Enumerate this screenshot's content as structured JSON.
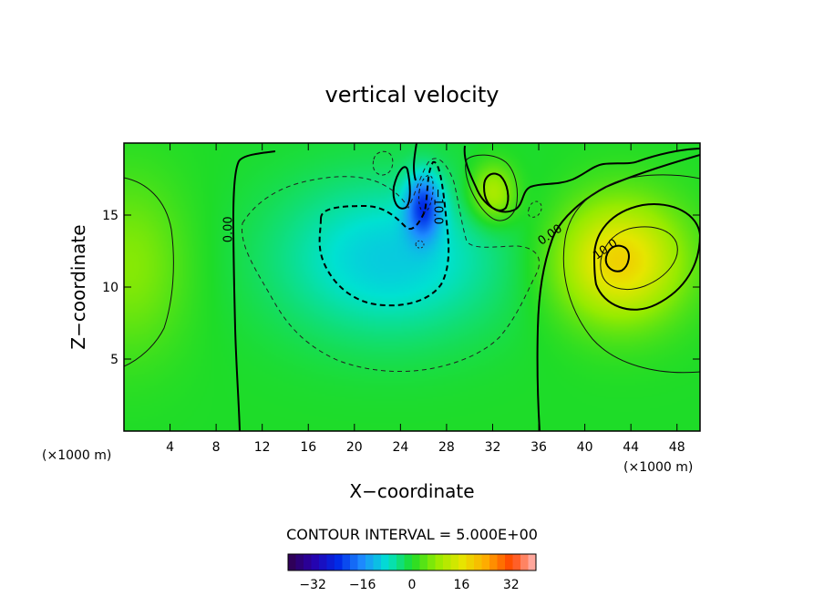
{
  "chart_data": {
    "type": "heatmap",
    "title": "vertical velocity",
    "xlabel": "X−coordinate",
    "ylabel": "Z−coordinate",
    "x_unit": "(×1000 m)",
    "x_unit_right": "(×1000 m)",
    "xlim": [
      0,
      50
    ],
    "ylim": [
      0,
      20
    ],
    "xticks": [
      4,
      8,
      12,
      16,
      20,
      24,
      28,
      32,
      36,
      40,
      44,
      48
    ],
    "yticks": [
      5,
      10,
      15
    ],
    "contour_interval_text": "CONTOUR INTERVAL = 5.000E+00",
    "contour_labels": [
      {
        "text": "0.00",
        "x": 9.1,
        "z": 14.0
      },
      {
        "text": "−10.0",
        "x": 27.2,
        "z": 15.6
      },
      {
        "text": "0.00",
        "x": 37.0,
        "z": 13.6
      },
      {
        "text": "10.0",
        "x": 41.8,
        "z": 12.6
      }
    ],
    "colorbar": {
      "ticks": [
        "−32",
        "−16",
        "0",
        "16",
        "32"
      ],
      "tick_values": [
        -32,
        -16,
        0,
        16,
        32
      ],
      "range": [
        -40,
        40
      ],
      "colormap": "rainbow"
    },
    "field_features": [
      {
        "kind": "downdraft",
        "center_x": 23.0,
        "center_z": 12.0,
        "value": -10
      },
      {
        "kind": "downdraft",
        "center_x": 26.0,
        "center_z": 15.6,
        "value": -18
      },
      {
        "kind": "updraft",
        "center_x": 43.0,
        "center_z": 11.8,
        "value": 19
      },
      {
        "kind": "updraft",
        "center_x": 32.0,
        "center_z": 16.5,
        "value": 12
      },
      {
        "kind": "updraft",
        "center_x": 0.5,
        "center_z": 11.5,
        "value": 7
      }
    ]
  }
}
